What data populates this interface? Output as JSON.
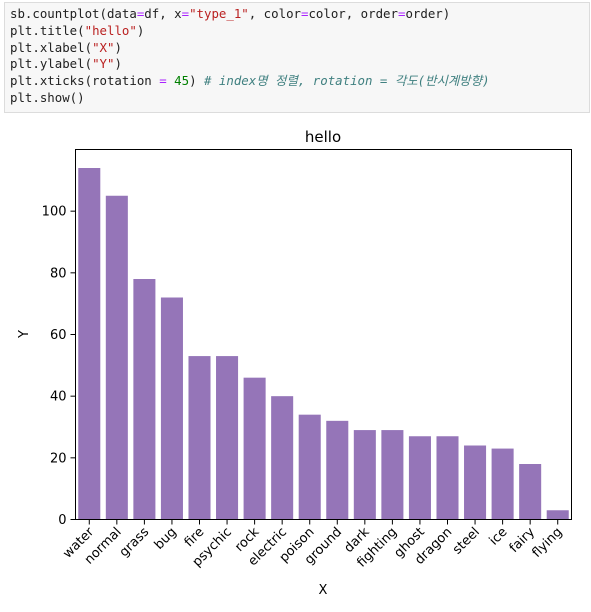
{
  "code_cell": {
    "lines": [
      [
        {
          "t": "sb.countplot(data",
          "c": "plain"
        },
        {
          "t": "=",
          "c": "op"
        },
        {
          "t": "df, x",
          "c": "plain"
        },
        {
          "t": "=",
          "c": "op"
        },
        {
          "t": "\"type_1\"",
          "c": "str"
        },
        {
          "t": ", color",
          "c": "plain"
        },
        {
          "t": "=",
          "c": "op"
        },
        {
          "t": "color, order",
          "c": "plain"
        },
        {
          "t": "=",
          "c": "op"
        },
        {
          "t": "order)",
          "c": "plain"
        }
      ],
      [
        {
          "t": "plt.title(",
          "c": "plain"
        },
        {
          "t": "\"hello\"",
          "c": "str"
        },
        {
          "t": ")",
          "c": "plain"
        }
      ],
      [
        {
          "t": "plt.xlabel(",
          "c": "plain"
        },
        {
          "t": "\"X\"",
          "c": "str"
        },
        {
          "t": ")",
          "c": "plain"
        }
      ],
      [
        {
          "t": "plt.ylabel(",
          "c": "plain"
        },
        {
          "t": "\"Y\"",
          "c": "str"
        },
        {
          "t": ")",
          "c": "plain"
        }
      ],
      [
        {
          "t": "plt.xticks(rotation ",
          "c": "plain"
        },
        {
          "t": "=",
          "c": "op"
        },
        {
          "t": " ",
          "c": "plain"
        },
        {
          "t": "45",
          "c": "num"
        },
        {
          "t": ") ",
          "c": "plain"
        },
        {
          "t": "# index명 정렬, rotation = 각도(반시계방향)",
          "c": "com"
        }
      ],
      [
        {
          "t": "plt.show()",
          "c": "plain"
        }
      ]
    ]
  },
  "chart_data": {
    "type": "bar",
    "title": "hello",
    "xlabel": "X",
    "ylabel": "Y",
    "categories": [
      "water",
      "normal",
      "grass",
      "bug",
      "fire",
      "psychic",
      "rock",
      "electric",
      "poison",
      "ground",
      "dark",
      "fighting",
      "ghost",
      "dragon",
      "steel",
      "ice",
      "fairy",
      "flying"
    ],
    "values": [
      114,
      105,
      78,
      72,
      53,
      53,
      46,
      40,
      34,
      32,
      29,
      29,
      27,
      27,
      24,
      23,
      18,
      3
    ],
    "ylim": [
      0,
      120
    ],
    "yticks": [
      0,
      20,
      40,
      60,
      80,
      100
    ],
    "xtick_rotation": 45,
    "bar_color": "#9575b8",
    "grid": false,
    "legend": "none"
  }
}
